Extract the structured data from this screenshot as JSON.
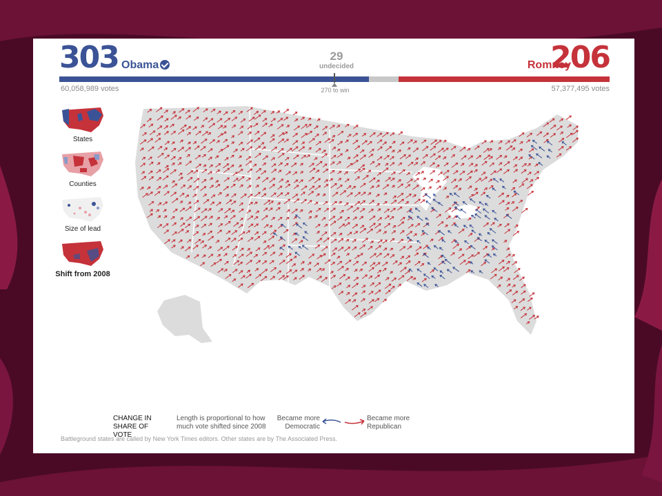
{
  "header": {
    "obama": {
      "electoral_votes": "303",
      "name": "Obama",
      "popular_votes": "60,058,989 votes"
    },
    "romney": {
      "electoral_votes": "206",
      "name": "Romney",
      "popular_votes": "57,377,495 votes"
    },
    "undecided": {
      "count": "29",
      "label": "undecided"
    },
    "win_threshold": "270 to win",
    "bar_fractions": {
      "obama": 303,
      "undecided": 29,
      "romney": 206,
      "total": 538
    }
  },
  "views": [
    {
      "label": "States",
      "active": false
    },
    {
      "label": "Counties",
      "active": false
    },
    {
      "label": "Size of lead",
      "active": false
    },
    {
      "label": "Shift from 2008",
      "active": true
    }
  ],
  "legend": {
    "title": "CHANGE IN SHARE OF VOTE",
    "description": "Length is proportional to how much vote shifted since 2008",
    "dem_label": "Became more Democratic",
    "rep_label": "Became more Republican"
  },
  "footnote": "Battleground states are called by New York Times editors. Other states are by The Associated Press.",
  "colors": {
    "democratic": "#3b5396",
    "republican": "#c5323a",
    "undecided": "#c8c8c8",
    "land": "#dcdcdc"
  }
}
